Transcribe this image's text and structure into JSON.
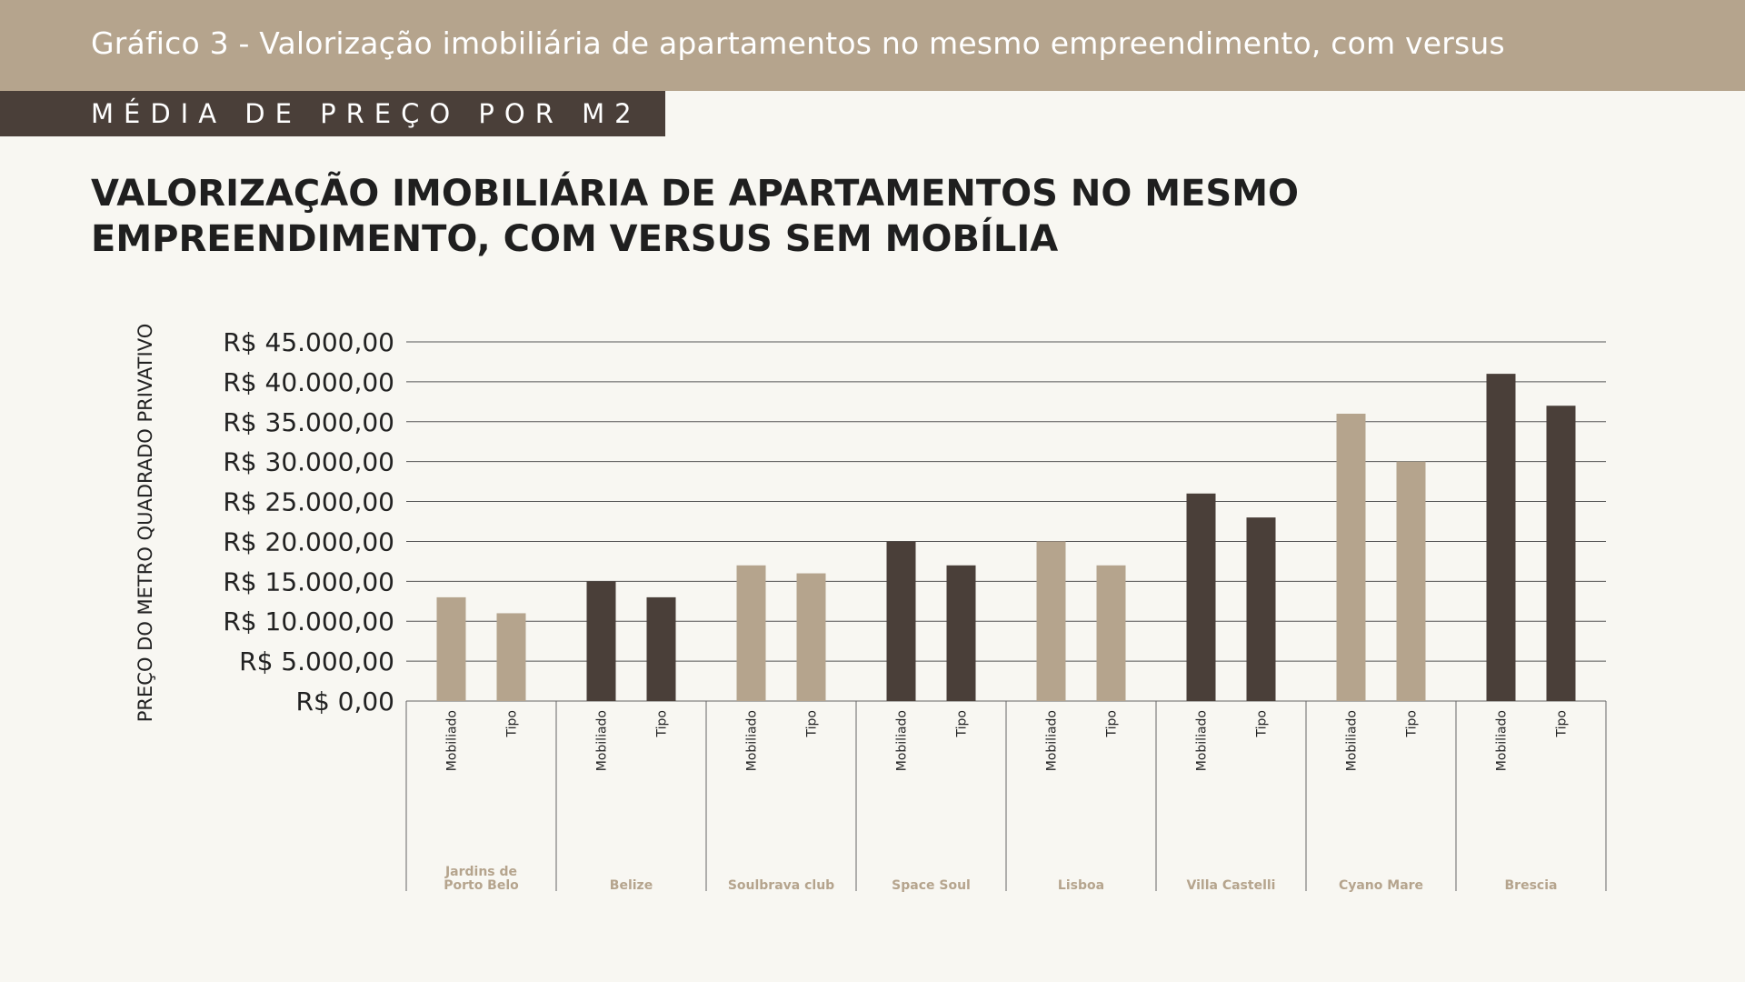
{
  "header": {
    "top_title": "Gráfico 3 - Valorização imobiliária de apartamentos no mesmo empreendimento, com versus",
    "subtitle": "MÉDIA DE PREÇO POR M2",
    "heading": "VALORIZAÇÃO IMOBILIÁRIA DE APARTAMENTOS NO MESMO EMPREENDIMENTO, COM VERSUS SEM MOBÍLIA"
  },
  "colors": {
    "beige": "#b5a48d",
    "dark": "#4a3f39",
    "background": "#f8f7f2"
  },
  "chart_data": {
    "type": "bar",
    "title": "VALORIZAÇÃO IMOBILIÁRIA DE APARTAMENTOS NO MESMO EMPREENDIMENTO, COM VERSUS SEM MOBÍLIA",
    "ylabel": "PREÇO DO METRO QUADRADO PRIVATIVO",
    "xlabel": "",
    "ylim": [
      0,
      45000
    ],
    "yticks": [
      {
        "value": 45000,
        "label": "R$ 45.000,00"
      },
      {
        "value": 40000,
        "label": "R$ 40.000,00"
      },
      {
        "value": 35000,
        "label": "R$ 35.000,00"
      },
      {
        "value": 30000,
        "label": "R$ 30.000,00"
      },
      {
        "value": 25000,
        "label": "R$ 25.000,00"
      },
      {
        "value": 20000,
        "label": "R$ 20.000,00"
      },
      {
        "value": 15000,
        "label": "R$ 15.000,00"
      },
      {
        "value": 10000,
        "label": "R$ 10.000,00"
      },
      {
        "value": 5000,
        "label": "R$ 5.000,00"
      },
      {
        "value": 0,
        "label": "R$ 0,00"
      }
    ],
    "grid": true,
    "legend": "none",
    "subcategories": [
      "Mobiliado",
      "Tipo"
    ],
    "groups": [
      {
        "name": "Jardins de\nPorto Belo",
        "values": [
          13000,
          11000
        ],
        "color": "#b5a48d"
      },
      {
        "name": "Belize",
        "values": [
          15000,
          13000
        ],
        "color": "#4a3f39"
      },
      {
        "name": "Soulbrava club",
        "values": [
          17000,
          16000
        ],
        "color": "#b5a48d"
      },
      {
        "name": "Space Soul",
        "values": [
          20000,
          17000
        ],
        "color": "#4a3f39"
      },
      {
        "name": "Lisboa",
        "values": [
          20000,
          17000
        ],
        "color": "#b5a48d"
      },
      {
        "name": "Villa Castelli",
        "values": [
          26000,
          23000
        ],
        "color": "#4a3f39"
      },
      {
        "name": "Cyano Mare",
        "values": [
          36000,
          30000
        ],
        "color": "#b5a48d"
      },
      {
        "name": "Brescia",
        "values": [
          41000,
          37000
        ],
        "color": "#4a3f39"
      }
    ]
  }
}
